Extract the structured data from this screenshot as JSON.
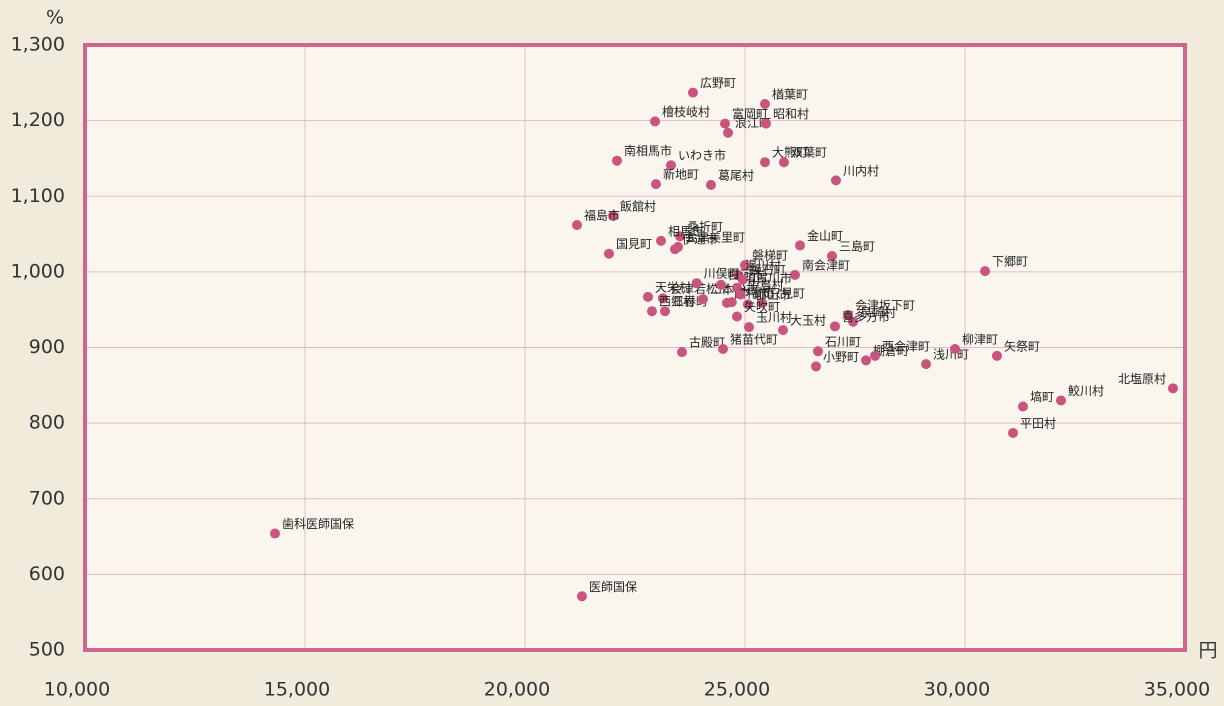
{
  "chart_data": {
    "type": "scatter",
    "x_label": "円",
    "y_label": "%",
    "xlim": [
      10000,
      35000
    ],
    "ylim": [
      500,
      1300
    ],
    "xticks": [
      {
        "value": 10000,
        "label": "10,000"
      },
      {
        "value": 15000,
        "label": "15,000"
      },
      {
        "value": 20000,
        "label": "20,000"
      },
      {
        "value": 25000,
        "label": "25,000"
      },
      {
        "value": 30000,
        "label": "30,000"
      },
      {
        "value": 35000,
        "label": "35,000"
      }
    ],
    "yticks": [
      500,
      600,
      700,
      800,
      900,
      {
        "value": 1000,
        "label": "1,000"
      },
      {
        "value": 1100,
        "label": "1,100"
      },
      {
        "value": 1200,
        "label": "1,200"
      },
      {
        "value": 1300,
        "label": "1,300"
      }
    ],
    "grid": true,
    "series": [
      {
        "color": "#c9547d",
        "labels": [
          "広野町",
          "富岡町",
          "楢葉町",
          "いわき市",
          "檜枝岐村",
          "浪江町",
          "昭和村",
          "南相馬市",
          "葛尾村",
          "双葉町",
          "大熊町",
          "川内村",
          "新地町",
          "飯舘村",
          "桑折町",
          "会津美里町",
          "福島市",
          "相馬市",
          "金山町",
          "磐梯町",
          "湯川村",
          "三島町",
          "国見町",
          "伊達市",
          "南会津町",
          "下郷町",
          "会津若松市",
          "天栄村",
          "西郷村",
          "三春町",
          "只見町",
          "二本松市",
          "郡山市",
          "会津坂下町",
          "泉崎村",
          "喜多方市",
          "大玉村",
          "玉川村",
          "古殿町",
          "猪苗代町",
          "石川町",
          "小野町",
          "棚倉町",
          "西会津町",
          "浅川町",
          "柳津町",
          "矢祭町",
          "塙町",
          "鮫川村",
          "北塩原村",
          "平田村",
          "歯科医師国保",
          "医師国保",
          "矢吹町",
          "田村市",
          "須賀川市",
          "白河市",
          "鏡石町",
          "本宮市",
          "中島村",
          "川俣町"
        ],
        "x": [
          23818,
          24545,
          25455,
          23318,
          22955,
          24614,
          25477,
          22091,
          24227,
          25886,
          25455,
          27068,
          22977,
          22000,
          23523,
          23477,
          21182,
          23091,
          26250,
          25000,
          24841,
          26977,
          21909,
          23410,
          26136,
          30455,
          23136,
          22795,
          22886,
          23182,
          25386,
          24045,
          25068,
          27341,
          27455,
          27045,
          25864,
          25091,
          23568,
          24500,
          26659,
          26614,
          27750,
          27955,
          29114,
          29773,
          30727,
          31318,
          32182,
          34727,
          31091,
          14318,
          21295,
          24818,
          24590,
          24818,
          24455,
          24950,
          24700,
          24900,
          23900
        ],
        "values": [
          1237,
          1196,
          1222,
          1141,
          1199,
          1184,
          1196,
          1147,
          1115,
          1145,
          1145,
          1121,
          1116,
          1074,
          1047,
          1033,
          1062,
          1041,
          1035,
          1009,
          996,
          1021,
          1024,
          1030,
          996,
          1001,
          965,
          967,
          948,
          948,
          959,
          964,
          957,
          943,
          934,
          928,
          923,
          927,
          894,
          898,
          895,
          875,
          883,
          889,
          878,
          898,
          889,
          822,
          830,
          846,
          787,
          654,
          571,
          941,
          959,
          979,
          983,
          990,
          960,
          970,
          985
        ]
      }
    ]
  }
}
